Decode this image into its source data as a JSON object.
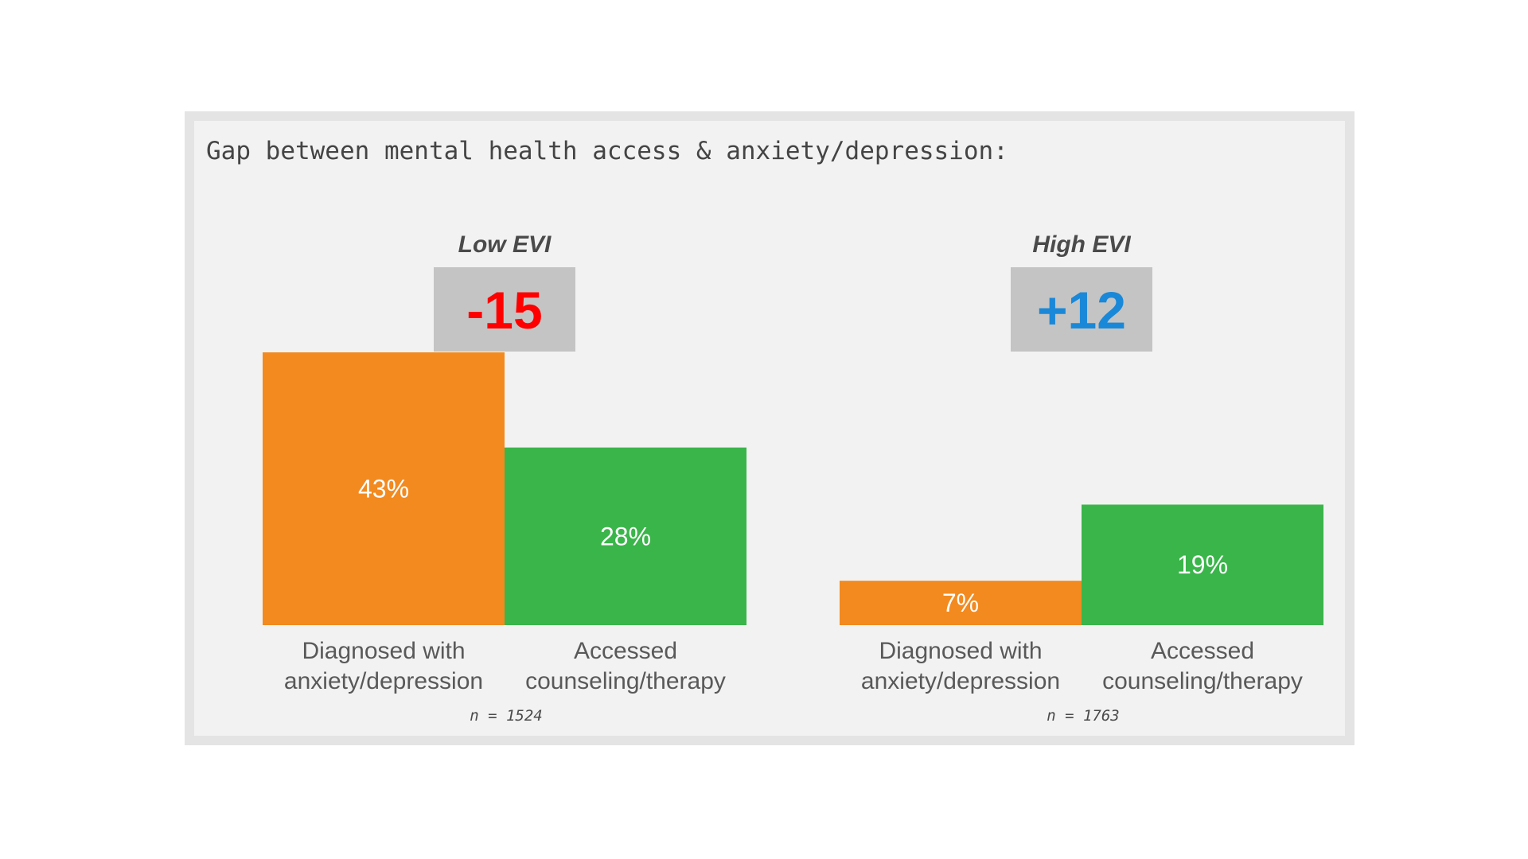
{
  "title": "Gap between mental health access & anxiety/depression:",
  "colors": {
    "diagnosed": "#f28a20",
    "accessed": "#3ab54a",
    "negative_gap": "#ff0000",
    "positive_gap": "#1a88d8",
    "gap_box": "#c4c4c4"
  },
  "chart_data": [
    {
      "type": "bar",
      "group_label": "Low EVI",
      "gap_label": "-15",
      "categories": [
        "Diagnosed with anxiety/depression",
        "Accessed counseling/therapy"
      ],
      "category_lines": [
        [
          "Diagnosed with",
          "anxiety/depression"
        ],
        [
          "Accessed",
          "counseling/therapy"
        ]
      ],
      "values": [
        43,
        28
      ],
      "value_labels": [
        "43%",
        "28%"
      ],
      "sample_size": "n = 1524",
      "ylim": [
        0,
        43
      ]
    },
    {
      "type": "bar",
      "group_label": "High EVI",
      "gap_label": "+12",
      "categories": [
        "Diagnosed with anxiety/depression",
        "Accessed counseling/therapy"
      ],
      "category_lines": [
        [
          "Diagnosed with",
          "anxiety/depression"
        ],
        [
          "Accessed",
          "counseling/therapy"
        ]
      ],
      "values": [
        7,
        19
      ],
      "value_labels": [
        "7%",
        "19%"
      ],
      "sample_size": "n = 1763",
      "ylim": [
        0,
        43
      ]
    }
  ]
}
